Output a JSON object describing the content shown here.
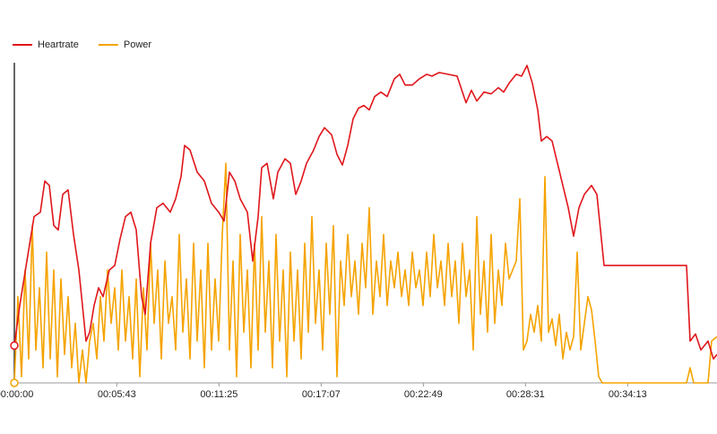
{
  "chart_data": {
    "type": "line",
    "xlim": [
      0,
      2352
    ],
    "ylim": [
      0,
      360
    ],
    "xticks": [
      {
        "value": 0,
        "label": "00:00:00"
      },
      {
        "value": 343,
        "label": "00:05:43"
      },
      {
        "value": 685,
        "label": "00:11:25"
      },
      {
        "value": 1027,
        "label": "00:17:07"
      },
      {
        "value": 1369,
        "label": "00:22:49"
      },
      {
        "value": 1711,
        "label": "00:28:31"
      },
      {
        "value": 2053,
        "label": "00:34:13"
      }
    ],
    "legend": "top-left",
    "series": [
      {
        "name": "Heartrate",
        "color": "#e0161b",
        "x": [
          0,
          18,
          42,
          66,
          87,
          102,
          117,
          132,
          147,
          162,
          180,
          198,
          216,
          228,
          240,
          252,
          267,
          282,
          297,
          318,
          336,
          354,
          372,
          390,
          408,
          426,
          438,
          456,
          477,
          498,
          522,
          540,
          558,
          570,
          588,
          612,
          636,
          660,
          684,
          702,
          720,
          738,
          756,
          780,
          798,
          816,
          828,
          846,
          867,
          882,
          906,
          924,
          942,
          960,
          978,
          1002,
          1020,
          1038,
          1062,
          1080,
          1098,
          1116,
          1134,
          1152,
          1170,
          1188,
          1206,
          1227,
          1248,
          1272,
          1290,
          1308,
          1332,
          1356,
          1380,
          1398,
          1422,
          1452,
          1482,
          1500,
          1512,
          1530,
          1548,
          1572,
          1596,
          1620,
          1638,
          1656,
          1680,
          1698,
          1716,
          1734,
          1752,
          1764,
          1782,
          1800,
          1818,
          1836,
          1854,
          1872,
          1890,
          1908,
          1932,
          1950,
          1974,
          2250,
          2262,
          2280,
          2298,
          2322,
          2340,
          2352
        ],
        "values": [
          42,
          87,
          137,
          187,
          192,
          227,
          222,
          177,
          172,
          212,
          217,
          167,
          127,
          87,
          47,
          57,
          87,
          107,
          97,
          127,
          132,
          162,
          187,
          192,
          172,
          97,
          77,
          157,
          197,
          202,
          192,
          207,
          232,
          267,
          262,
          237,
          227,
          202,
          192,
          182,
          237,
          227,
          207,
          192,
          137,
          187,
          242,
          247,
          207,
          237,
          252,
          247,
          212,
          227,
          247,
          262,
          277,
          287,
          279,
          257,
          245,
          267,
          297,
          309,
          312,
          307,
          322,
          327,
          322,
          342,
          347,
          335,
          335,
          342,
          347,
          345,
          349,
          347,
          345,
          327,
          315,
          329,
          317,
          327,
          325,
          332,
          327,
          337,
          347,
          345,
          357,
          337,
          307,
          272,
          277,
          272,
          247,
          222,
          197,
          165,
          197,
          212,
          222,
          212,
          132,
          132,
          47,
          55,
          37,
          47,
          27,
          32
        ]
      },
      {
        "name": "Power",
        "color": "#f5a300",
        "x": [
          0,
          12,
          24,
          36,
          48,
          60,
          72,
          84,
          96,
          108,
          120,
          132,
          144,
          156,
          168,
          180,
          192,
          204,
          216,
          228,
          240,
          252,
          264,
          276,
          288,
          300,
          312,
          324,
          336,
          348,
          360,
          372,
          384,
          396,
          408,
          420,
          432,
          444,
          456,
          468,
          480,
          492,
          504,
          516,
          528,
          540,
          552,
          564,
          576,
          588,
          600,
          612,
          624,
          636,
          648,
          660,
          672,
          684,
          696,
          708,
          720,
          732,
          744,
          756,
          768,
          780,
          792,
          804,
          816,
          828,
          840,
          852,
          864,
          876,
          888,
          900,
          912,
          924,
          936,
          948,
          960,
          972,
          984,
          996,
          1008,
          1020,
          1032,
          1044,
          1056,
          1068,
          1080,
          1092,
          1104,
          1116,
          1128,
          1140,
          1152,
          1164,
          1176,
          1188,
          1200,
          1212,
          1224,
          1236,
          1248,
          1260,
          1272,
          1284,
          1296,
          1308,
          1320,
          1332,
          1344,
          1356,
          1368,
          1380,
          1392,
          1404,
          1416,
          1428,
          1440,
          1452,
          1464,
          1476,
          1488,
          1500,
          1512,
          1524,
          1536,
          1548,
          1560,
          1572,
          1584,
          1596,
          1608,
          1620,
          1632,
          1644,
          1656,
          1668,
          1680,
          1692,
          1704,
          1716,
          1728,
          1740,
          1752,
          1764,
          1776,
          1788,
          1800,
          1812,
          1824,
          1836,
          1848,
          1860,
          1872,
          1884,
          1896,
          1908,
          1920,
          1932,
          1944,
          1956,
          1968,
          2250,
          2262,
          2274,
          2322,
          2334,
          2352
        ],
        "values": [
          0,
          97,
          7,
          127,
          27,
          177,
          37,
          107,
          17,
          147,
          27,
          127,
          7,
          117,
          32,
          97,
          17,
          67,
          0,
          37,
          0,
          47,
          67,
          27,
          97,
          47,
          127,
          67,
          107,
          37,
          127,
          47,
          97,
          27,
          117,
          7,
          107,
          37,
          157,
          67,
          127,
          27,
          137,
          67,
          97,
          37,
          167,
          57,
          117,
          27,
          157,
          47,
          127,
          17,
          157,
          37,
          117,
          47,
          167,
          247,
          37,
          137,
          7,
          167,
          57,
          127,
          17,
          157,
          37,
          187,
          57,
          137,
          17,
          167,
          47,
          127,
          7,
          147,
          47,
          127,
          27,
          157,
          57,
          187,
          67,
          127,
          37,
          157,
          77,
          177,
          7,
          137,
          87,
          167,
          97,
          137,
          77,
          157,
          107,
          197,
          77,
          137,
          97,
          167,
          87,
          137,
          107,
          147,
          97,
          127,
          87,
          147,
          107,
          127,
          87,
          147,
          97,
          167,
          107,
          137,
          87,
          157,
          97,
          137,
          67,
          157,
          97,
          127,
          37,
          187,
          77,
          137,
          57,
          167,
          67,
          127,
          87,
          157,
          117,
          127,
          137,
          207,
          37,
          47,
          77,
          57,
          87,
          47,
          232,
          57,
          72,
          42,
          77,
          27,
          57,
          37,
          52,
          147,
          37,
          67,
          97,
          82,
          47,
          7,
          0,
          0,
          17,
          0,
          0,
          47,
          52
        ]
      }
    ]
  }
}
